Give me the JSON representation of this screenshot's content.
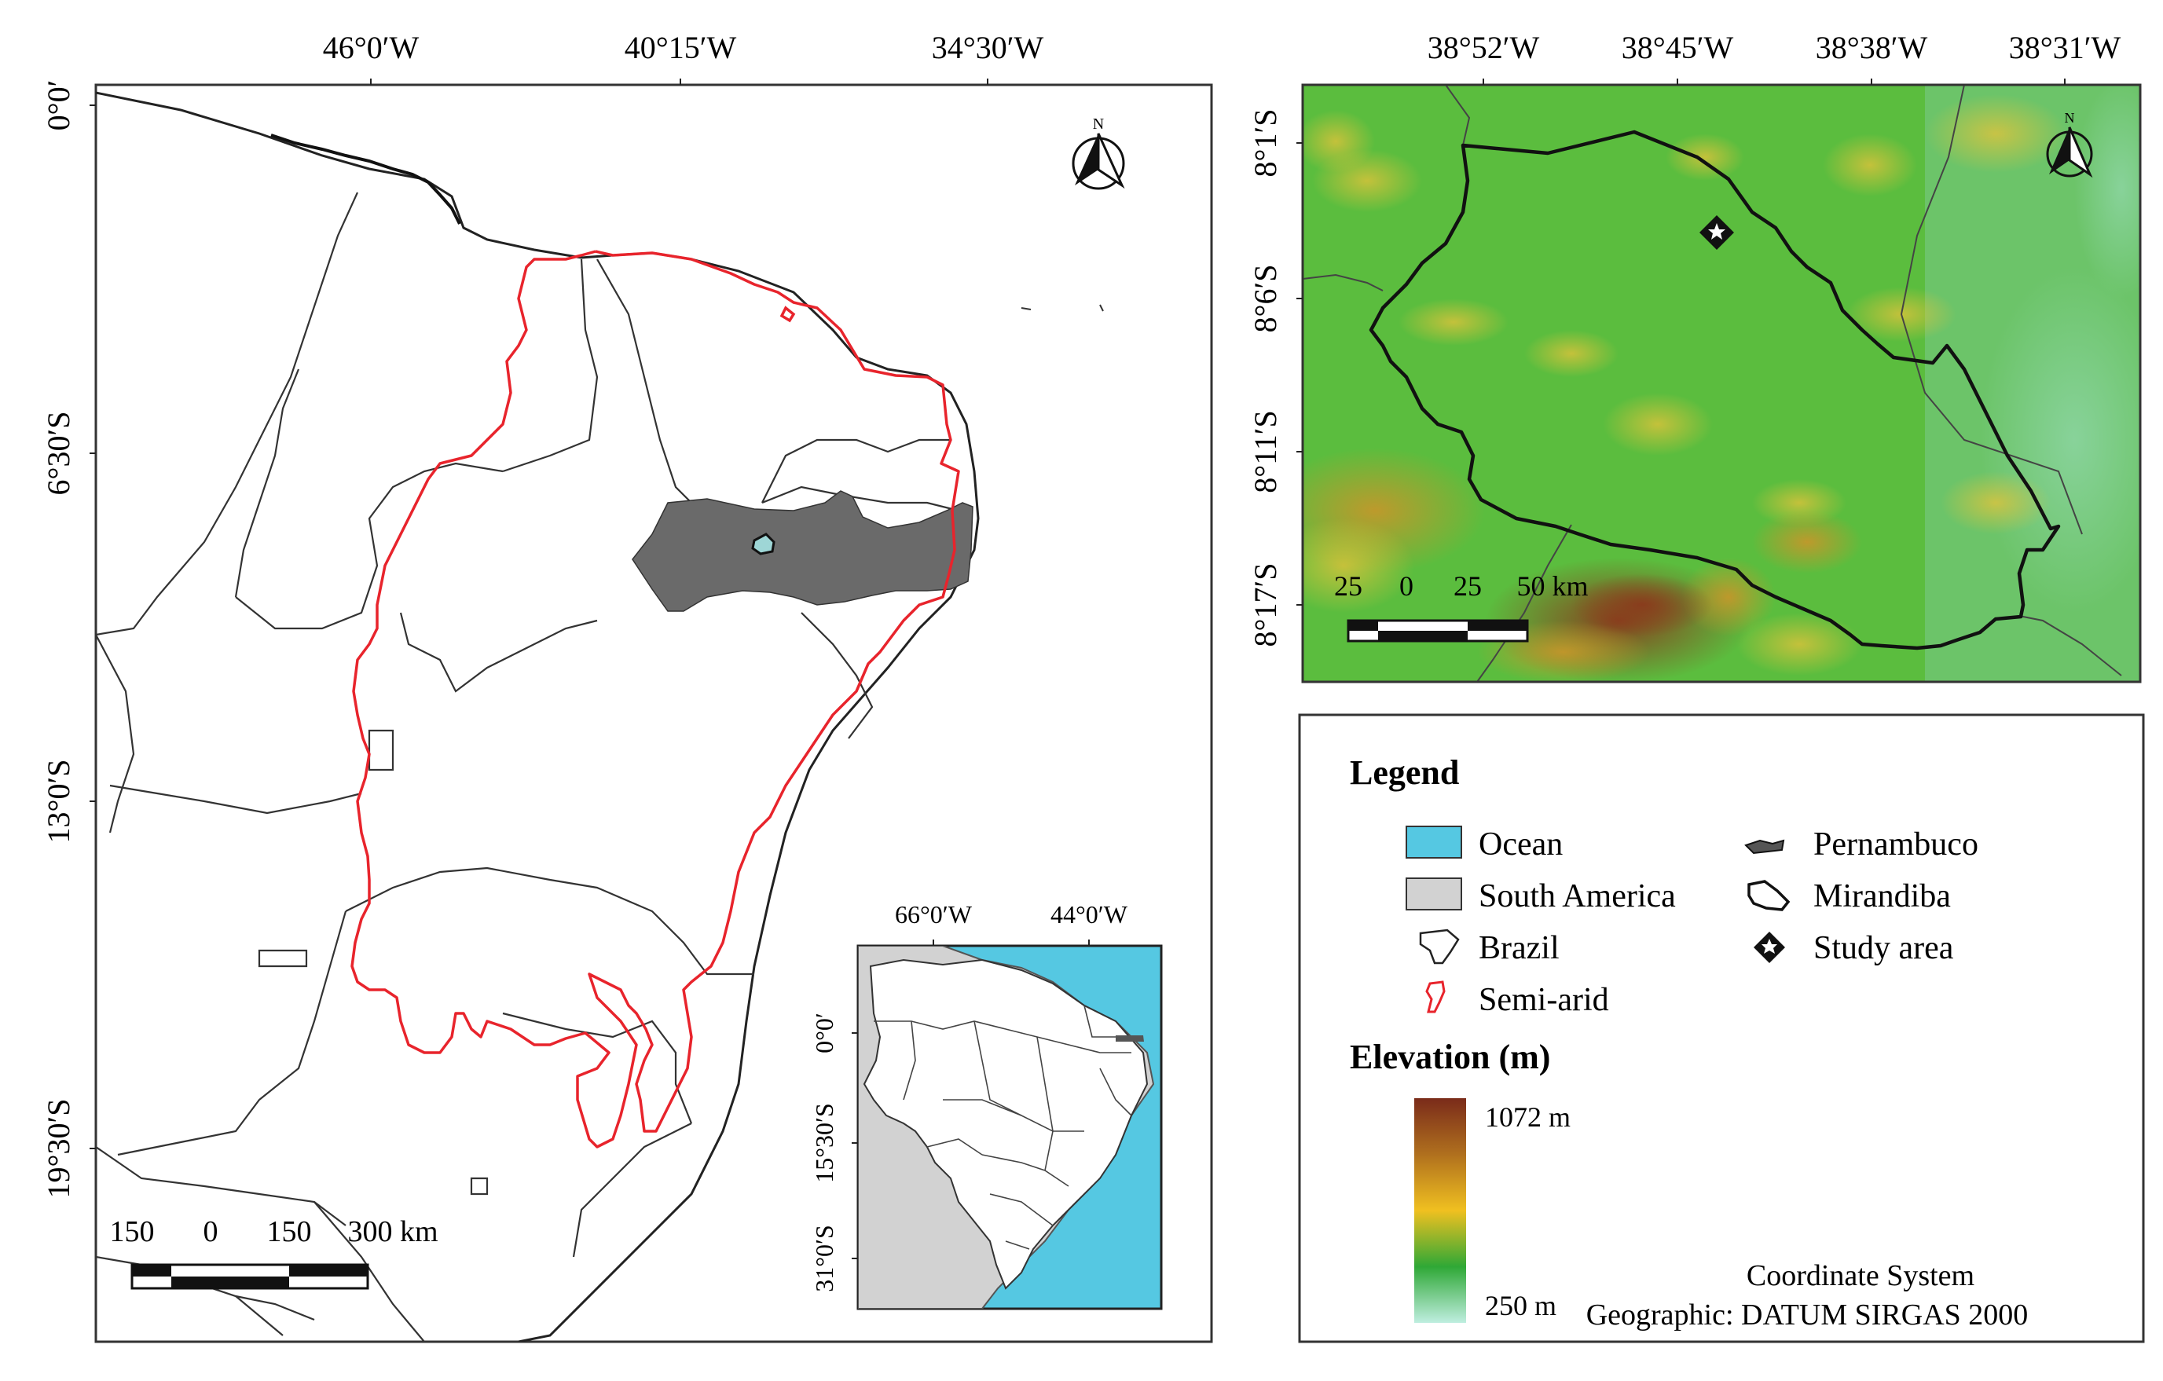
{
  "main_map": {
    "top_ticks": [
      "46°0′W",
      "40°15′W",
      "34°30′W"
    ],
    "left_ticks": [
      "0°0′",
      "6°30′S",
      "13°0′S",
      "19°30′S"
    ],
    "north_label": "N",
    "scale_labels": [
      "150",
      "0",
      "150",
      "300 km"
    ]
  },
  "inset_map": {
    "top_ticks": [
      "66°0′W",
      "44°0′W"
    ],
    "left_ticks": [
      "0°0′",
      "15°30′S",
      "31°0′S"
    ]
  },
  "elevation_map": {
    "top_ticks": [
      "38°52′W",
      "38°45′W",
      "38°38′W",
      "38°31′W"
    ],
    "left_ticks": [
      "8°1′S",
      "8°6′S",
      "8°11′S",
      "8°17′S"
    ],
    "north_label": "N",
    "scale_labels": [
      "25",
      "0",
      "25",
      "50 km"
    ]
  },
  "legend": {
    "title": "Legend",
    "items": [
      {
        "label": "Ocean",
        "symbol": "ocean-swatch"
      },
      {
        "label": "South America",
        "symbol": "south-america-swatch"
      },
      {
        "label": "Brazil",
        "symbol": "brazil-icon"
      },
      {
        "label": "Semi-arid",
        "symbol": "semi-arid-icon"
      },
      {
        "label": "Pernambuco",
        "symbol": "pernambuco-icon"
      },
      {
        "label": "Mirandiba",
        "symbol": "mirandiba-icon"
      },
      {
        "label": "Study area",
        "symbol": "study-area-icon"
      }
    ],
    "elevation_title": "Elevation (m)",
    "elevation_max": "1072 m",
    "elevation_min": "250 m",
    "coord_line1": "Coordinate System",
    "coord_line2": "Geographic: DATUM SIRGAS 2000"
  },
  "colors": {
    "ocean": "#55c8e2",
    "south_america": "#d2d2d2",
    "semi_arid": "#e8242c",
    "pernambuco": "#6a6a6a",
    "elev_high": "#7a2b1a",
    "elev_mid": "#f0c020",
    "elev_low": "#2fa836",
    "elev_min": "#bfeee0"
  }
}
